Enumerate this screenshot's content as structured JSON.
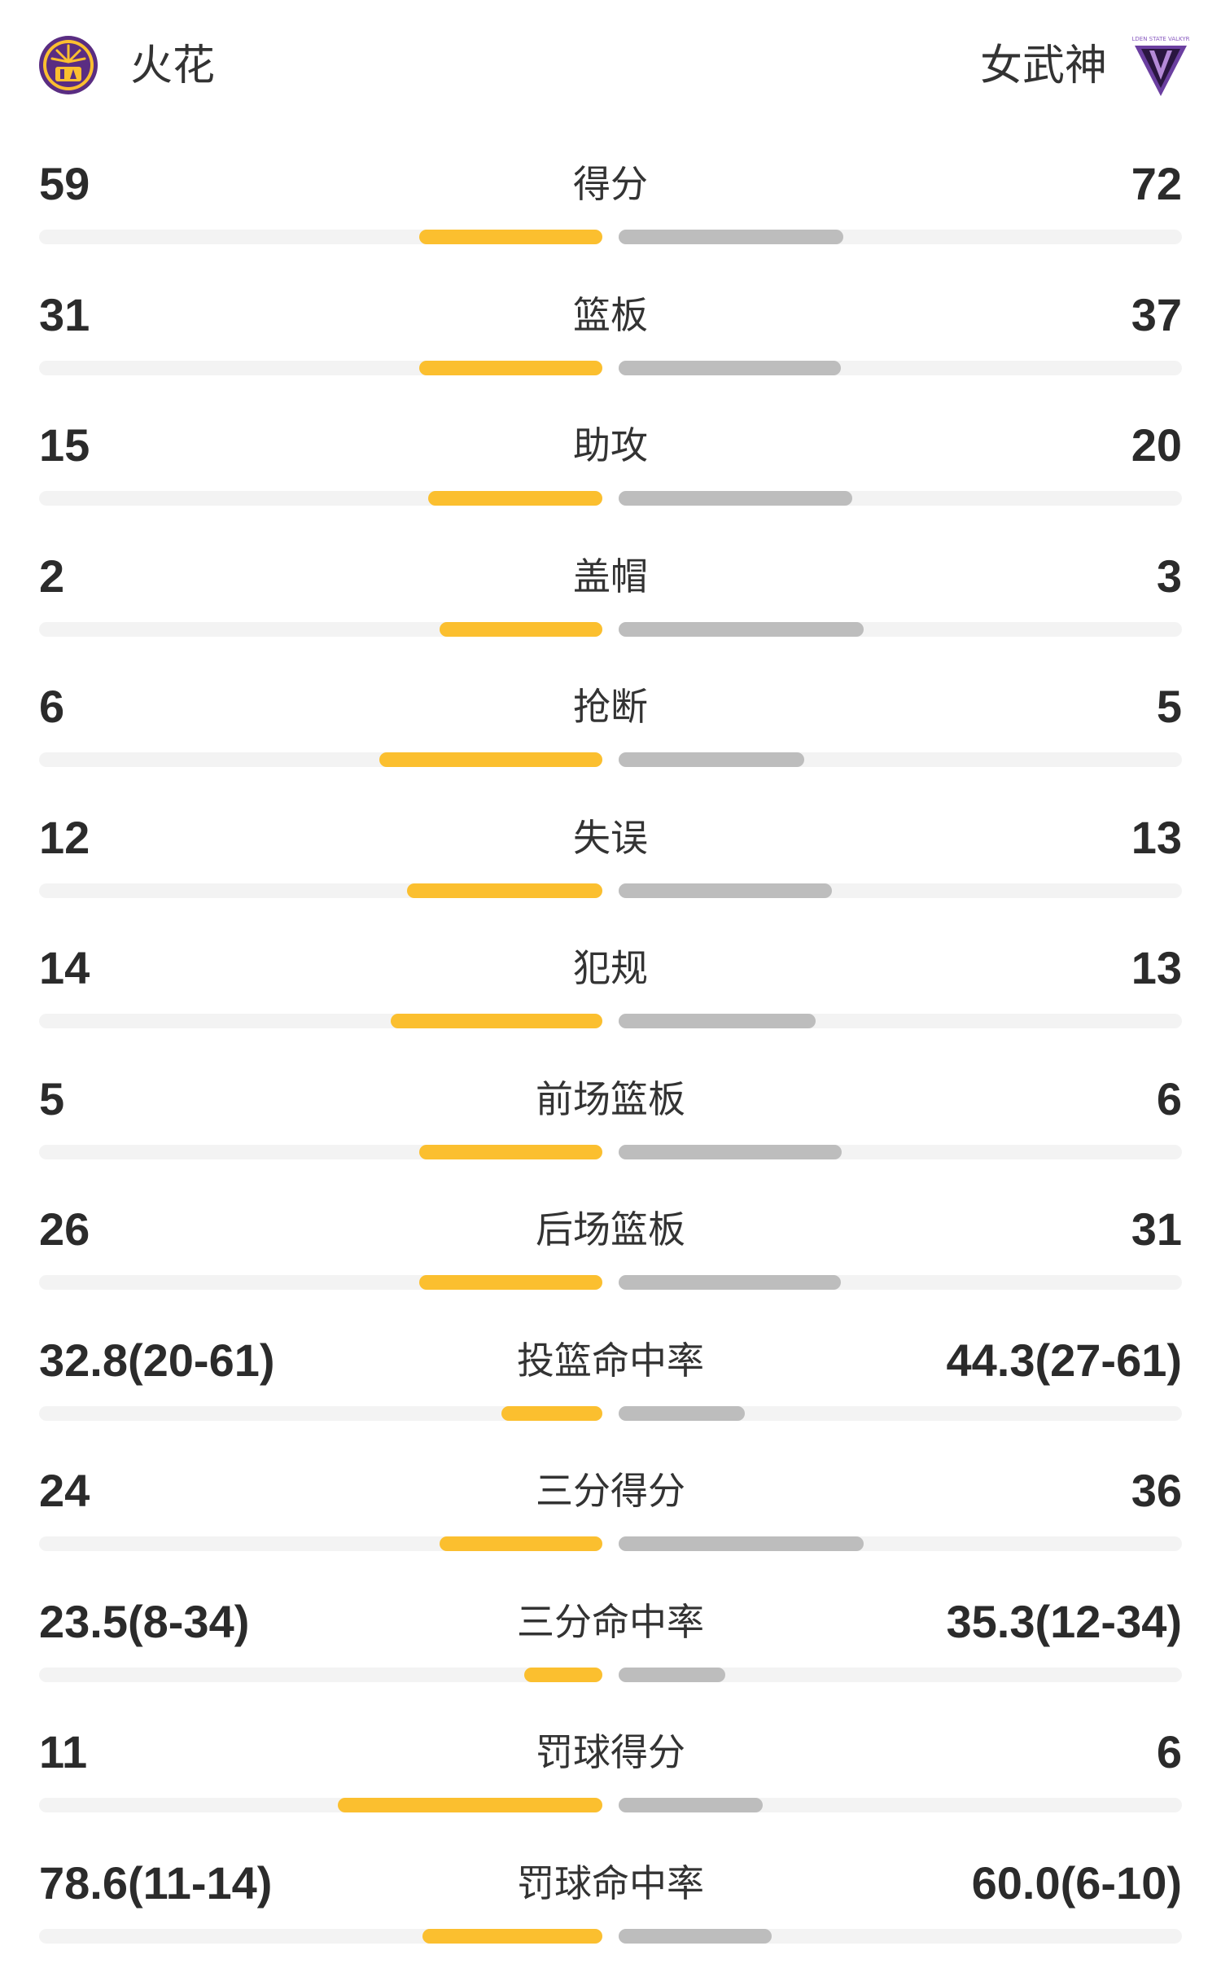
{
  "teams": {
    "home": {
      "name": "火花",
      "logo_icon": "los-angeles-sparks-logo-icon",
      "color": "#fbbf2f"
    },
    "away": {
      "name": "女武神",
      "logo_icon": "golden-state-valkyries-logo-icon",
      "logo_text": "GOLDEN STATE VALKYRIES",
      "color": "#bdbdbd"
    }
  },
  "colors": {
    "home_bar": "#fbbf2f",
    "away_bar": "#bdbdbd",
    "track": "#f3f3f3"
  },
  "stats": [
    {
      "label": "得分",
      "home": "59",
      "away": "72",
      "home_share": 0.3125,
      "away_share": 0.3828
    },
    {
      "label": "篮板",
      "home": "31",
      "away": "37",
      "home_share": 0.3125,
      "away_share": 0.3789
    },
    {
      "label": "助攻",
      "home": "15",
      "away": "20",
      "home_share": 0.2969,
      "away_share": 0.3984
    },
    {
      "label": "盖帽",
      "home": "2",
      "away": "3",
      "home_share": 0.2773,
      "away_share": 0.418
    },
    {
      "label": "抢断",
      "home": "6",
      "away": "5",
      "home_share": 0.3809,
      "away_share": 0.3164
    },
    {
      "label": "失误",
      "home": "12",
      "away": "13",
      "home_share": 0.334,
      "away_share": 0.3633
    },
    {
      "label": "犯规",
      "home": "14",
      "away": "13",
      "home_share": 0.3613,
      "away_share": 0.3359
    },
    {
      "label": "前场篮板",
      "home": "5",
      "away": "6",
      "home_share": 0.3125,
      "away_share": 0.3809
    },
    {
      "label": "后场篮板",
      "home": "26",
      "away": "31",
      "home_share": 0.3125,
      "away_share": 0.3789
    },
    {
      "label": "投篮命中率",
      "home": "32.8(20-61)",
      "away": "44.3(27-61)",
      "home_share": 0.1719,
      "away_share": 0.2148
    },
    {
      "label": "三分得分",
      "home": "24",
      "away": "36",
      "home_share": 0.2773,
      "away_share": 0.418
    },
    {
      "label": "三分命中率",
      "home": "23.5(8-34)",
      "away": "35.3(12-34)",
      "home_share": 0.1328,
      "away_share": 0.1816
    },
    {
      "label": "罚球得分",
      "home": "11",
      "away": "6",
      "home_share": 0.4512,
      "away_share": 0.2461
    },
    {
      "label": "罚球命中率",
      "home": "78.6(11-14)",
      "away": "60.0(6-10)",
      "home_share": 0.3066,
      "away_share": 0.2617
    }
  ]
}
